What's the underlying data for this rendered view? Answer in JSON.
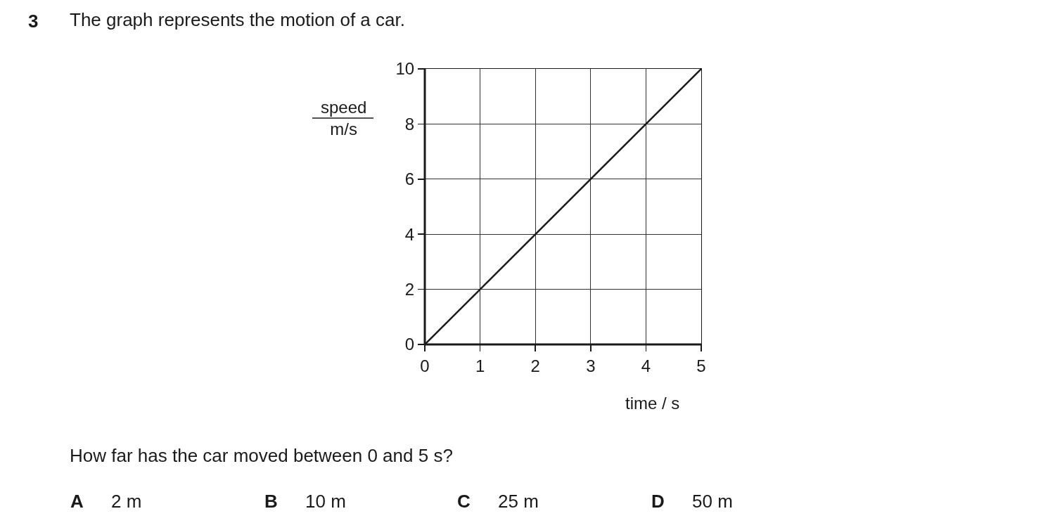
{
  "chart_data": {
    "type": "line",
    "title": "The graph represents the motion of a car.",
    "xlabel": "time / s",
    "ylabel": "speed\nm/s",
    "x": [
      0,
      5
    ],
    "series": [
      {
        "color": "#1a1a1a",
        "values": [
          0,
          10
        ]
      }
    ],
    "xlim": [
      0,
      5
    ],
    "xticks": [
      0,
      1,
      2,
      3,
      4,
      5
    ],
    "ylim": [
      0,
      10
    ],
    "yticks": [
      0,
      2,
      4,
      6,
      8,
      10
    ],
    "grid": true,
    "marker": "none",
    "line_style": "solid",
    "annotations": [
      "3",
      "How far has the car moved between 0 and 5 s?",
      "A",
      "2 m",
      "B",
      "10 m",
      "C",
      "25 m",
      "D",
      "50 m"
    ]
  }
}
